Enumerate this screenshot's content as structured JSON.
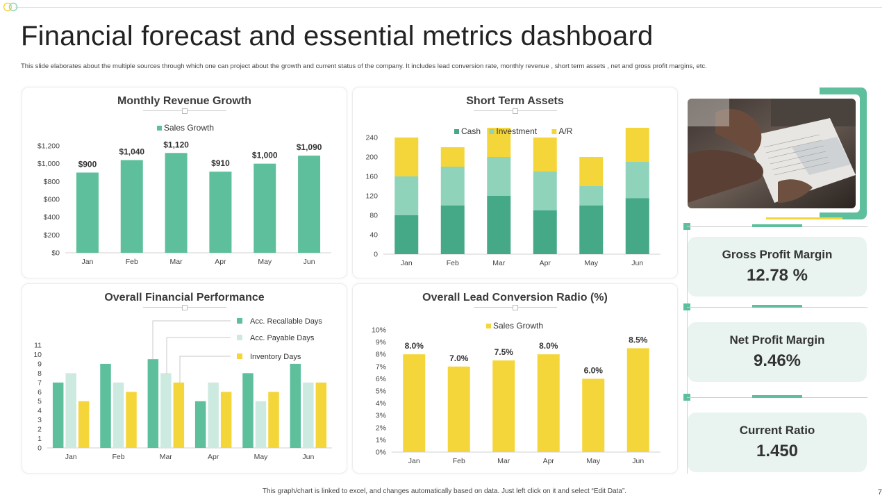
{
  "title": "Financial forecast and essential metrics dashboard",
  "subtitle": "This slide elaborates about the multiple  sources through which one can project about the growth and current status of the company. It includes lead conversion rate, monthly revenue , short term assets , net and gross profit margins, etc.",
  "footer": "This graph/chart is linked to excel, and changes automatically based on data. Just left click on it and select “Edit Data”.",
  "page_number": "7",
  "colors": {
    "teal": "#5dbf9c",
    "dark_teal": "#45a886",
    "mint": "#8fd3bb",
    "light_mint": "#cdeae0",
    "yellow": "#f5d63a",
    "metric_bg": "#e9f4f1"
  },
  "metrics": [
    {
      "label": "Gross Profit Margin",
      "value": "12.78 %"
    },
    {
      "label": "Net Profit Margin",
      "value": "9.46%"
    },
    {
      "label": "Current Ratio",
      "value": "1.450"
    }
  ],
  "image": {
    "icon": "business-meeting-photo"
  },
  "chart_data": [
    {
      "id": "revenue",
      "type": "bar",
      "title": "Monthly Revenue Growth",
      "categories": [
        "Jan",
        "Feb",
        "Mar",
        "Apr",
        "May",
        "Jun"
      ],
      "series": [
        {
          "name": "Sales Growth",
          "values": [
            900,
            1040,
            1120,
            910,
            1000,
            1090
          ]
        }
      ],
      "data_labels": [
        "$900",
        "$1,040",
        "$1,120",
        "$910",
        "$1,000",
        "$1,090"
      ],
      "yticks": [
        "$0",
        "$200",
        "$400",
        "$600",
        "$800",
        "$1,000",
        "$1,200"
      ],
      "ylim": [
        0,
        1200
      ],
      "legend": "top"
    },
    {
      "id": "assets",
      "type": "bar",
      "stacked": true,
      "title": "Short Term Assets",
      "categories": [
        "Jan",
        "Feb",
        "Mar",
        "Apr",
        "May",
        "Jun"
      ],
      "series": [
        {
          "name": "Cash",
          "values": [
            80,
            100,
            120,
            90,
            100,
            115
          ]
        },
        {
          "name": "Investment",
          "values": [
            80,
            80,
            80,
            80,
            40,
            75
          ]
        },
        {
          "name": "A/R",
          "values": [
            80,
            40,
            60,
            70,
            60,
            70
          ]
        }
      ],
      "yticks": [
        "0",
        "40",
        "80",
        "120",
        "160",
        "200",
        "240"
      ],
      "ylim": [
        0,
        260
      ],
      "legend": "top"
    },
    {
      "id": "performance",
      "type": "bar",
      "title": "Overall Financial Performance",
      "categories": [
        "Jan",
        "Feb",
        "Mar",
        "Apr",
        "May",
        "Jun"
      ],
      "series": [
        {
          "name": "Acc. Recallable Days",
          "values": [
            7,
            9,
            9.5,
            5,
            8,
            9
          ]
        },
        {
          "name": "Acc. Payable Days",
          "values": [
            8,
            7,
            8,
            7,
            5,
            7
          ]
        },
        {
          "name": "Inventory Days",
          "values": [
            5,
            6,
            7,
            6,
            6,
            7
          ]
        }
      ],
      "yticks": [
        "0",
        "1",
        "2",
        "3",
        "4",
        "5",
        "6",
        "7",
        "8",
        "9",
        "10",
        "11"
      ],
      "ylim": [
        0,
        11
      ],
      "legend": "top-right"
    },
    {
      "id": "conversion",
      "type": "bar",
      "title": "Overall Lead Conversion Radio (%)",
      "categories": [
        "Jan",
        "Feb",
        "Mar",
        "Apr",
        "May",
        "Jun"
      ],
      "series": [
        {
          "name": "Sales Growth",
          "values": [
            8.0,
            7.0,
            7.5,
            8.0,
            6.0,
            8.5
          ]
        }
      ],
      "data_labels": [
        "8.0%",
        "7.0%",
        "7.5%",
        "8.0%",
        "6.0%",
        "8.5%"
      ],
      "yticks": [
        "0%",
        "1%",
        "2%",
        "3%",
        "4%",
        "5%",
        "6%",
        "7%",
        "8%",
        "9%",
        "10%"
      ],
      "ylim": [
        0,
        10
      ],
      "legend": "top"
    }
  ]
}
